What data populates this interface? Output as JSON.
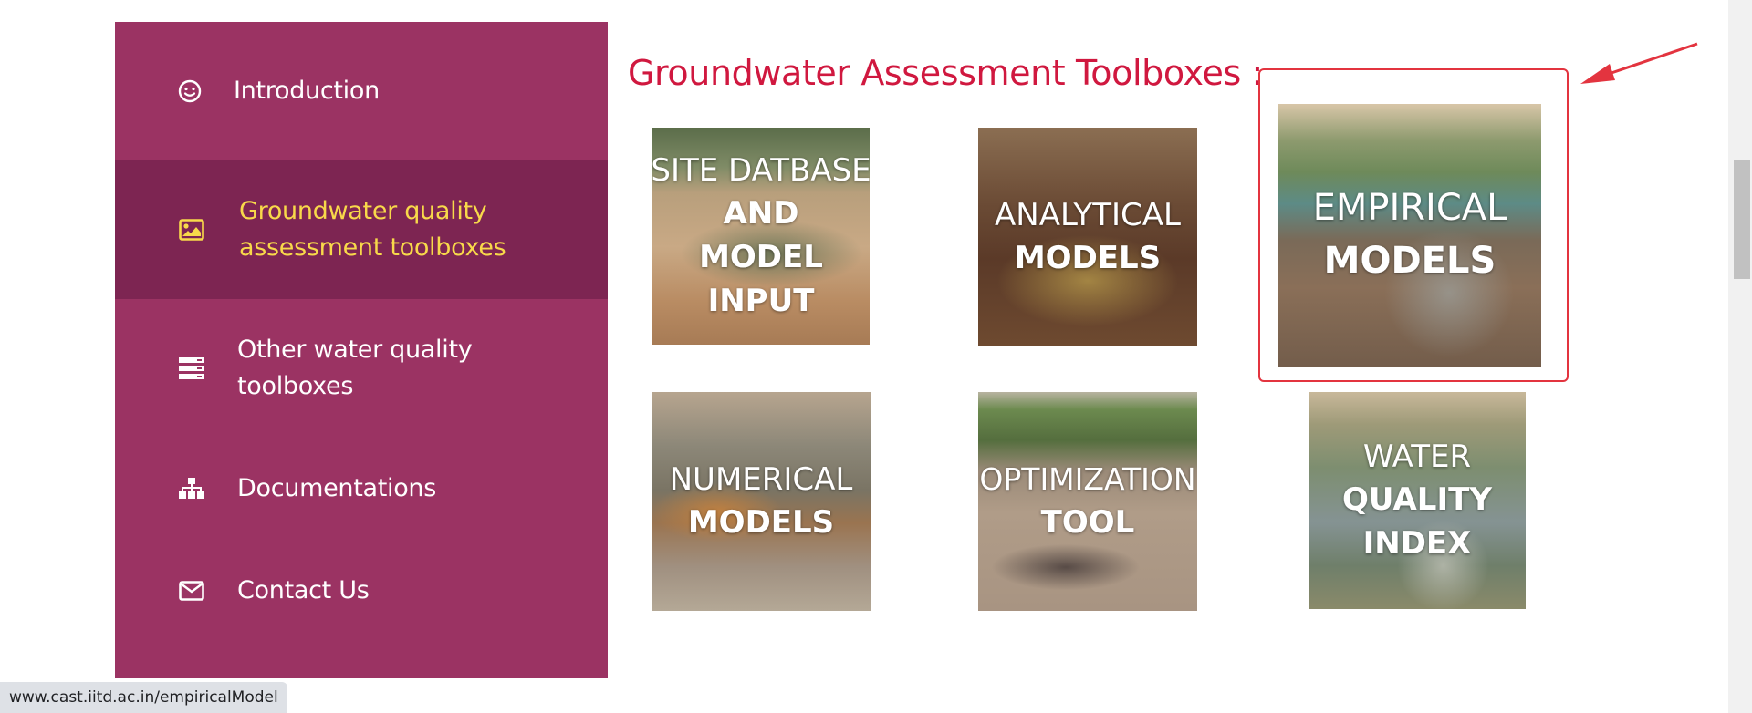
{
  "sidebar": {
    "items": [
      {
        "label": "Introduction",
        "icon": "smiley-icon",
        "active": false
      },
      {
        "label": "Groundwater quality assessment toolboxes",
        "icon": "image-icon",
        "active": true
      },
      {
        "label": "Other water quality toolboxes",
        "icon": "server-icon",
        "active": false
      },
      {
        "label": "Documentations",
        "icon": "sitemap-icon",
        "active": false
      },
      {
        "label": "Contact Us",
        "icon": "envelope-icon",
        "active": false
      }
    ]
  },
  "main": {
    "heading": "Groundwater Assessment Toolboxes :",
    "tiles": [
      {
        "line1": "SITE DATBASE",
        "line2": "AND\nMODEL\nINPUT"
      },
      {
        "line1": "ANALYTICAL",
        "line2": "MODELS"
      },
      {
        "line1": "EMPIRICAL",
        "line2": "MODELS"
      },
      {
        "line1": "NUMERICAL",
        "line2": "MODELS"
      },
      {
        "line1": "OPTIMIZATION",
        "line2": "TOOL"
      },
      {
        "line1": "WATER",
        "line2": "QUALITY\nINDEX"
      }
    ]
  },
  "status": {
    "url": "www.cast.iitd.ac.in/empiricalModel"
  },
  "colors": {
    "sidebar_bg": "#9b3363",
    "sidebar_active_bg": "#7d2552",
    "active_text": "#f8d94a",
    "heading": "#d0183f",
    "highlight": "#e3343f"
  }
}
